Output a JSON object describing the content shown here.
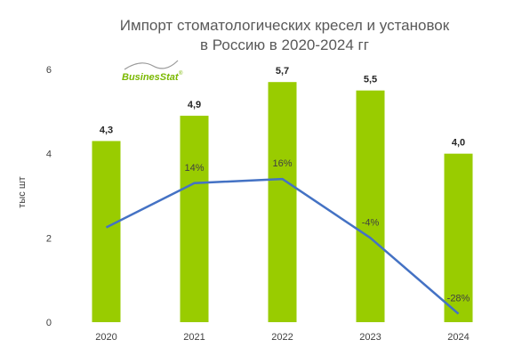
{
  "chart_data": {
    "type": "bar",
    "title_line1": "Импорт стоматологических кресел и установок",
    "title_line2": "в Россию в 2020-2024 гг",
    "ylabel": "тыс шт",
    "ylim": [
      0,
      6
    ],
    "yticks": [
      "0",
      "2",
      "4",
      "6"
    ],
    "categories": [
      "2020",
      "2021",
      "2022",
      "2023",
      "2024"
    ],
    "values": [
      4.3,
      4.9,
      5.7,
      5.5,
      4.0
    ],
    "value_labels": [
      "4,3",
      "4,9",
      "5,7",
      "5,5",
      "4,0"
    ],
    "line": {
      "points": [
        null,
        14,
        16,
        -4,
        -28
      ],
      "labels": [
        "",
        "14%",
        "16%",
        "-4%",
        "-28%"
      ],
      "y_on_value_axis": [
        2.25,
        3.3,
        3.4,
        2.0,
        0.2
      ]
    },
    "bar_color": "#99cc00",
    "line_color": "#4472c4",
    "legend": "none",
    "grid": false
  },
  "logo": {
    "text": "BusinesStat",
    "trademark": "®",
    "color": "#7ab800"
  }
}
